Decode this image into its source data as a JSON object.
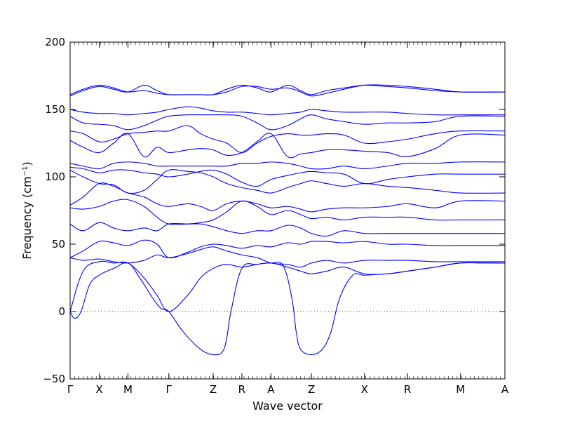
{
  "chart_data": {
    "type": "line",
    "title": "",
    "xlabel": "Wave vector",
    "ylabel": "Frequency (cm⁻¹)",
    "ylim": [
      -50,
      200
    ],
    "yticks": [
      -50,
      0,
      50,
      100,
      150,
      200
    ],
    "xlim": [
      0,
      10.0
    ],
    "high_symmetry_points": [
      {
        "label": "Γ",
        "x": 0.0
      },
      {
        "label": "X",
        "x": 0.67
      },
      {
        "label": "M",
        "x": 1.33
      },
      {
        "label": "Γ",
        "x": 2.27
      },
      {
        "label": "Z",
        "x": 3.29
      },
      {
        "label": "R",
        "x": 3.95
      },
      {
        "label": "A",
        "x": 4.62
      },
      {
        "label": "Z",
        "x": 5.55
      },
      {
        "label": "X",
        "x": 6.77
      },
      {
        "label": "R",
        "x": 7.76
      },
      {
        "label": "M",
        "x": 8.98
      },
      {
        "label": "A",
        "x": 10.0
      }
    ],
    "zero_line": {
      "y": 0,
      "style": "dotted"
    },
    "grid": false,
    "line_color": "#0000ff",
    "branches": [
      {
        "name": "",
        "x": [
          0,
          0.1,
          0.25,
          0.45,
          0.67,
          1.0,
          1.33,
          1.6,
          1.9,
          2.1,
          2.27,
          2.6,
          3.0,
          3.29,
          3.5,
          3.6,
          3.7,
          3.95,
          4.3,
          4.62,
          4.9,
          5.1,
          5.2,
          5.3,
          5.55,
          5.8,
          6.0,
          6.2,
          6.5,
          6.77,
          7.3,
          7.76,
          8.4,
          8.98,
          9.5,
          10.0
        ],
        "y": [
          0,
          -5,
          0,
          20,
          27,
          32,
          36,
          25,
          10,
          2,
          0,
          -15,
          -28,
          -32,
          -30,
          -20,
          0,
          32,
          35,
          36,
          34,
          10,
          -15,
          -28,
          -32,
          -28,
          -15,
          10,
          27,
          27,
          28,
          30,
          33,
          36,
          36,
          36
        ]
      },
      {
        "name": "",
        "x": [
          0,
          0.3,
          0.67,
          1.0,
          1.33,
          1.7,
          2.0,
          2.27,
          2.7,
          3.0,
          3.29,
          3.6,
          3.95,
          4.3,
          4.62,
          5.0,
          5.3,
          5.55,
          5.9,
          6.3,
          6.77,
          7.3,
          7.76,
          8.4,
          8.98,
          10.0
        ],
        "y": [
          0,
          30,
          37,
          36,
          36,
          25,
          12,
          0,
          12,
          25,
          32,
          35,
          33,
          35,
          36,
          33,
          30,
          28,
          30,
          33,
          28,
          28,
          30,
          33,
          36,
          36
        ]
      },
      {
        "name": "",
        "x": [
          0,
          0.3,
          0.67,
          1.0,
          1.33,
          1.7,
          2.0,
          2.27,
          2.7,
          3.0,
          3.29,
          3.6,
          3.95,
          4.3,
          4.62,
          5.0,
          5.3,
          5.55,
          5.9,
          6.3,
          6.77,
          7.3,
          7.76,
          8.4,
          8.98,
          10.0
        ],
        "y": [
          40,
          38,
          39,
          37,
          36,
          38,
          42,
          40,
          43,
          46,
          48,
          45,
          42,
          40,
          36,
          35,
          33,
          36,
          38,
          36,
          38,
          38,
          38,
          37,
          37,
          37
        ]
      },
      {
        "name": "",
        "x": [
          0,
          0.3,
          0.67,
          1.0,
          1.33,
          1.7,
          2.0,
          2.27,
          2.7,
          3.0,
          3.29,
          3.6,
          3.95,
          4.3,
          4.62,
          5.0,
          5.3,
          5.55,
          5.9,
          6.3,
          6.77,
          7.3,
          7.76,
          8.4,
          8.98,
          10.0
        ],
        "y": [
          40,
          45,
          52,
          51,
          49,
          53,
          50,
          40,
          44,
          48,
          50,
          49,
          47,
          49,
          48,
          51,
          50,
          52,
          52,
          51,
          52,
          50,
          50,
          49,
          49,
          49
        ]
      },
      {
        "name": "",
        "x": [
          0,
          0.3,
          0.67,
          1.0,
          1.33,
          1.7,
          2.0,
          2.27,
          2.7,
          3.0,
          3.29,
          3.6,
          3.95,
          4.3,
          4.62,
          5.0,
          5.3,
          5.55,
          5.9,
          6.3,
          6.77,
          7.3,
          7.76,
          8.4,
          8.98,
          10.0
        ],
        "y": [
          65,
          60,
          66,
          62,
          60,
          62,
          60,
          65,
          65,
          65,
          63,
          60,
          58,
          60,
          60,
          64,
          62,
          58,
          56,
          60,
          58,
          58,
          58,
          58,
          58,
          58
        ]
      },
      {
        "name": "",
        "x": [
          0,
          0.3,
          0.67,
          1.0,
          1.33,
          1.7,
          2.0,
          2.27,
          2.7,
          3.0,
          3.29,
          3.6,
          3.95,
          4.3,
          4.62,
          5.0,
          5.3,
          5.55,
          5.9,
          6.3,
          6.77,
          7.3,
          7.76,
          8.4,
          8.98,
          10.0
        ],
        "y": [
          77,
          76,
          78,
          82,
          83,
          78,
          70,
          65,
          65,
          66,
          68,
          74,
          82,
          78,
          72,
          75,
          72,
          69,
          70,
          68,
          70,
          70,
          70,
          68,
          68,
          68
        ]
      },
      {
        "name": "",
        "x": [
          0,
          0.3,
          0.67,
          1.0,
          1.33,
          1.7,
          2.0,
          2.27,
          2.7,
          3.0,
          3.29,
          3.6,
          3.95,
          4.3,
          4.62,
          5.0,
          5.3,
          5.55,
          5.9,
          6.3,
          6.77,
          7.3,
          7.76,
          8.4,
          8.98,
          10.0
        ],
        "y": [
          79,
          85,
          95,
          93,
          88,
          85,
          80,
          78,
          80,
          78,
          75,
          80,
          82,
          80,
          77,
          78,
          76,
          74,
          76,
          77,
          77,
          78,
          80,
          77,
          82,
          82
        ]
      },
      {
        "name": "",
        "x": [
          0,
          0.3,
          0.67,
          1.0,
          1.33,
          1.7,
          2.0,
          2.27,
          2.7,
          3.0,
          3.29,
          3.6,
          3.95,
          4.3,
          4.62,
          5.0,
          5.3,
          5.55,
          5.9,
          6.3,
          6.77,
          7.3,
          7.76,
          8.4,
          8.98,
          10.0
        ],
        "y": [
          105,
          100,
          95,
          94,
          88,
          90,
          98,
          105,
          104,
          103,
          100,
          95,
          92,
          90,
          88,
          92,
          95,
          97,
          95,
          93,
          95,
          93,
          92,
          90,
          88,
          88
        ]
      },
      {
        "name": "",
        "x": [
          0,
          0.3,
          0.67,
          1.0,
          1.33,
          1.7,
          2.0,
          2.27,
          2.7,
          3.0,
          3.29,
          3.6,
          3.95,
          4.3,
          4.62,
          5.0,
          5.3,
          5.55,
          5.9,
          6.3,
          6.77,
          7.3,
          7.76,
          8.4,
          8.98,
          10.0
        ],
        "y": [
          107,
          106,
          103,
          105,
          105,
          103,
          102,
          100,
          102,
          104,
          105,
          102,
          96,
          93,
          98,
          101,
          103,
          104,
          103,
          102,
          95,
          98,
          100,
          102,
          102,
          102
        ]
      },
      {
        "name": "",
        "x": [
          0,
          0.3,
          0.67,
          1.0,
          1.33,
          1.7,
          2.0,
          2.27,
          2.7,
          3.0,
          3.29,
          3.6,
          3.95,
          4.3,
          4.62,
          5.0,
          5.3,
          5.55,
          5.9,
          6.3,
          6.77,
          7.3,
          7.76,
          8.4,
          8.98,
          10.0
        ],
        "y": [
          110,
          108,
          106,
          110,
          111,
          110,
          108,
          108,
          108,
          108,
          108,
          108,
          110,
          110,
          111,
          110,
          108,
          106,
          106,
          108,
          106,
          108,
          110,
          110,
          111,
          111
        ]
      },
      {
        "name": "",
        "x": [
          0,
          0.3,
          0.67,
          1.0,
          1.33,
          1.7,
          2.0,
          2.27,
          2.7,
          3.0,
          3.29,
          3.6,
          3.95,
          4.3,
          4.62,
          5.0,
          5.3,
          5.55,
          5.9,
          6.3,
          6.77,
          7.3,
          7.76,
          8.4,
          8.98,
          10.0
        ],
        "y": [
          127,
          122,
          118,
          125,
          132,
          115,
          122,
          118,
          120,
          121,
          120,
          116,
          118,
          126,
          132,
          115,
          117,
          118,
          120,
          120,
          119,
          118,
          115,
          121,
          131,
          131
        ]
      },
      {
        "name": "",
        "x": [
          0,
          0.3,
          0.67,
          1.0,
          1.33,
          1.7,
          2.0,
          2.27,
          2.7,
          3.0,
          3.29,
          3.6,
          3.95,
          4.3,
          4.62,
          5.0,
          5.3,
          5.55,
          5.9,
          6.3,
          6.77,
          7.3,
          7.76,
          8.4,
          8.98,
          10.0
        ],
        "y": [
          134,
          132,
          126,
          128,
          132,
          133,
          134,
          134,
          138,
          132,
          128,
          125,
          118,
          125,
          130,
          132,
          131,
          131,
          132,
          131,
          125,
          126,
          128,
          132,
          134,
          134
        ]
      },
      {
        "name": "",
        "x": [
          0,
          0.3,
          0.67,
          1.0,
          1.33,
          1.7,
          2.0,
          2.27,
          2.7,
          3.0,
          3.29,
          3.6,
          3.95,
          4.3,
          4.62,
          5.0,
          5.3,
          5.55,
          5.9,
          6.3,
          6.77,
          7.3,
          7.76,
          8.4,
          8.98,
          10.0
        ],
        "y": [
          145,
          140,
          139,
          138,
          135,
          138,
          142,
          145,
          146,
          146,
          146,
          146,
          145,
          140,
          135,
          138,
          143,
          146,
          143,
          141,
          139,
          140,
          140,
          141,
          145,
          145
        ]
      },
      {
        "name": "",
        "x": [
          0,
          0.3,
          0.67,
          1.0,
          1.33,
          1.7,
          2.0,
          2.27,
          2.7,
          3.0,
          3.29,
          3.6,
          3.95,
          4.3,
          4.62,
          5.0,
          5.3,
          5.55,
          5.9,
          6.3,
          6.77,
          7.3,
          7.76,
          8.4,
          8.98,
          10.0
        ],
        "y": [
          150,
          148,
          147,
          147,
          146,
          147,
          148,
          150,
          152,
          151,
          149,
          148,
          148,
          147,
          146,
          147,
          148,
          150,
          149,
          148,
          148,
          148,
          147,
          146,
          146,
          146
        ]
      },
      {
        "name": "",
        "x": [
          0,
          0.3,
          0.67,
          1.0,
          1.33,
          1.7,
          2.0,
          2.27,
          2.7,
          3.0,
          3.29,
          3.6,
          3.95,
          4.3,
          4.62,
          5.0,
          5.3,
          5.55,
          5.9,
          6.3,
          6.77,
          7.3,
          7.76,
          8.4,
          8.98,
          10.0
        ],
        "y": [
          160,
          164,
          167,
          165,
          163,
          168,
          164,
          161,
          161,
          161,
          161,
          165,
          168,
          166,
          163,
          168,
          164,
          161,
          164,
          166,
          168,
          167,
          166,
          164,
          163,
          163
        ]
      },
      {
        "name": "",
        "x": [
          0,
          0.3,
          0.67,
          1.0,
          1.33,
          1.7,
          2.0,
          2.27,
          2.7,
          3.0,
          3.29,
          3.6,
          3.95,
          4.3,
          4.62,
          5.0,
          5.3,
          5.55,
          5.9,
          6.3,
          6.77,
          7.3,
          7.76,
          8.4,
          8.98,
          10.0
        ],
        "y": [
          161,
          165,
          168,
          166,
          163,
          164,
          162,
          161,
          161,
          161,
          161,
          163,
          167,
          167,
          165,
          166,
          163,
          160,
          162,
          165,
          168,
          168,
          167,
          165,
          163,
          163
        ]
      }
    ]
  }
}
